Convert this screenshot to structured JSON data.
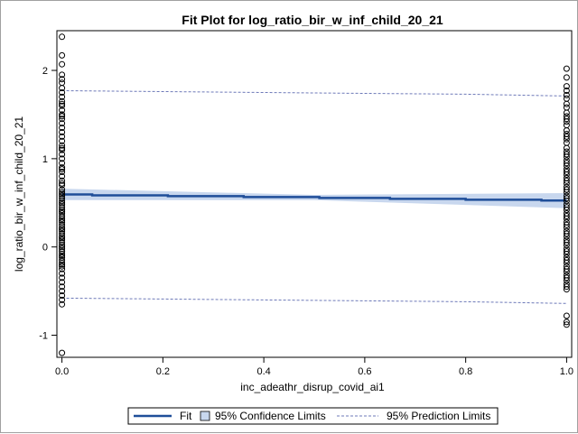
{
  "chart_data": {
    "type": "scatter",
    "title": "Fit Plot for log_ratio_bir_w_inf_child_20_21",
    "xlabel": "inc_adeathr_disrup_covid_ai1",
    "ylabel": "log_ratio_bir_w_inf_child_20_21",
    "xlim": [
      -0.01,
      1.01
    ],
    "ylim": [
      -1.25,
      2.45
    ],
    "x_ticks": [
      0.0,
      0.2,
      0.4,
      0.6,
      0.8,
      1.0
    ],
    "x_tick_labels": [
      "0.0",
      "0.2",
      "0.4",
      "0.6",
      "0.8",
      "1.0"
    ],
    "y_ticks": [
      -1,
      0,
      1,
      2
    ],
    "y_tick_labels": [
      "-1",
      "0",
      "1",
      "2"
    ],
    "grid": false,
    "legend_position": "bottom",
    "legend": [
      {
        "label": "Fit",
        "kind": "line"
      },
      {
        "label": "95% Confidence Limits",
        "kind": "band"
      },
      {
        "label": "95% Prediction Limits",
        "kind": "dashed"
      }
    ],
    "colors": {
      "fit": "#1f4e99",
      "confidence_band": "#c8d7ee",
      "prediction": "#6d79b8",
      "marker": "#000000"
    },
    "series": [
      {
        "name": "Fit",
        "x": [
          0.0,
          0.06,
          0.06,
          0.21,
          0.21,
          0.36,
          0.36,
          0.51,
          0.51,
          0.65,
          0.65,
          0.8,
          0.8,
          0.95,
          0.95,
          1.0
        ],
        "y": [
          0.595,
          0.595,
          0.585,
          0.585,
          0.575,
          0.575,
          0.565,
          0.565,
          0.555,
          0.555,
          0.545,
          0.545,
          0.535,
          0.535,
          0.525,
          0.525
        ]
      },
      {
        "name": "95% Confidence Limits",
        "x": [
          0.0,
          0.5,
          1.0
        ],
        "lower": [
          0.53,
          0.53,
          0.44
        ],
        "upper": [
          0.66,
          0.59,
          0.61
        ]
      },
      {
        "name": "95% Prediction Limits",
        "x": [
          0.0,
          0.2,
          0.4,
          0.6,
          0.8,
          1.0
        ],
        "lower": [
          -0.58,
          -0.59,
          -0.6,
          -0.61,
          -0.62,
          -0.64
        ],
        "upper": [
          1.77,
          1.76,
          1.75,
          1.74,
          1.73,
          1.71
        ]
      },
      {
        "name": "Observations",
        "x": [
          0,
          0,
          0,
          0,
          0,
          0,
          0,
          0,
          0,
          0,
          0,
          0,
          0,
          0,
          0,
          0,
          0,
          0,
          0,
          0,
          0,
          0,
          0,
          0,
          0,
          0,
          0,
          0,
          0,
          0,
          0,
          0,
          0,
          0,
          0,
          0,
          0,
          0,
          0,
          0,
          0,
          0,
          0,
          0,
          0,
          0,
          0,
          0,
          0,
          0,
          0,
          0,
          0,
          0,
          0,
          0,
          0,
          0,
          0,
          0,
          0,
          0,
          0,
          0,
          0,
          0,
          0,
          0,
          0,
          0,
          0,
          0,
          0,
          0,
          0,
          0,
          0,
          0,
          0,
          0,
          1,
          1,
          1,
          1,
          1,
          1,
          1,
          1,
          1,
          1,
          1,
          1,
          1,
          1,
          1,
          1,
          1,
          1,
          1,
          1,
          1,
          1,
          1,
          1,
          1,
          1,
          1,
          1,
          1,
          1,
          1,
          1,
          1,
          1,
          1,
          1,
          1,
          1,
          1,
          1,
          1,
          1,
          1,
          1,
          1,
          1,
          1,
          1,
          1,
          1,
          1,
          1,
          1,
          1,
          1,
          1,
          1,
          1,
          1,
          1,
          1,
          1,
          1,
          1,
          1,
          1,
          1,
          1,
          1,
          1
        ],
        "y": [
          2.38,
          2.17,
          2.07,
          1.95,
          1.9,
          1.86,
          1.8,
          1.75,
          1.7,
          1.65,
          1.6,
          1.55,
          1.5,
          1.45,
          1.4,
          1.35,
          1.3,
          1.25,
          1.2,
          1.15,
          1.1,
          1.05,
          1.0,
          0.95,
          0.9,
          0.85,
          0.8,
          0.75,
          0.7,
          0.65,
          0.6,
          0.55,
          0.5,
          0.45,
          0.4,
          0.35,
          0.3,
          0.25,
          0.2,
          0.15,
          0.1,
          0.05,
          0.0,
          -0.05,
          -0.1,
          -0.15,
          -0.2,
          -0.25,
          -0.3,
          -0.35,
          -0.4,
          -0.45,
          -0.5,
          -0.55,
          -0.6,
          -0.65,
          -1.2,
          1.62,
          1.48,
          1.12,
          0.88,
          0.72,
          0.62,
          0.58,
          0.52,
          0.48,
          0.42,
          0.38,
          0.32,
          0.28,
          0.22,
          0.18,
          0.12,
          0.08,
          0.02,
          -0.02,
          -0.08,
          -0.12,
          -0.18,
          -0.22,
          2.02,
          1.92,
          1.82,
          1.77,
          1.72,
          1.68,
          1.62,
          1.58,
          1.52,
          1.48,
          1.42,
          1.38,
          1.32,
          1.28,
          1.22,
          1.18,
          1.12,
          1.08,
          1.02,
          0.98,
          0.92,
          0.88,
          0.82,
          0.78,
          0.72,
          0.68,
          0.62,
          0.58,
          0.52,
          0.48,
          0.42,
          0.38,
          0.32,
          0.28,
          0.22,
          0.18,
          0.12,
          0.08,
          0.02,
          -0.02,
          -0.08,
          -0.12,
          -0.18,
          -0.22,
          -0.28,
          -0.32,
          -0.38,
          -0.42,
          -0.48,
          -0.78,
          -0.85,
          -0.88,
          1.45,
          1.25,
          1.05,
          0.95,
          0.85,
          0.75,
          0.65,
          0.55,
          0.45,
          0.35,
          0.25,
          0.15,
          0.05,
          -0.05,
          -0.15,
          -0.25,
          -0.35,
          -0.45
        ]
      }
    ]
  }
}
